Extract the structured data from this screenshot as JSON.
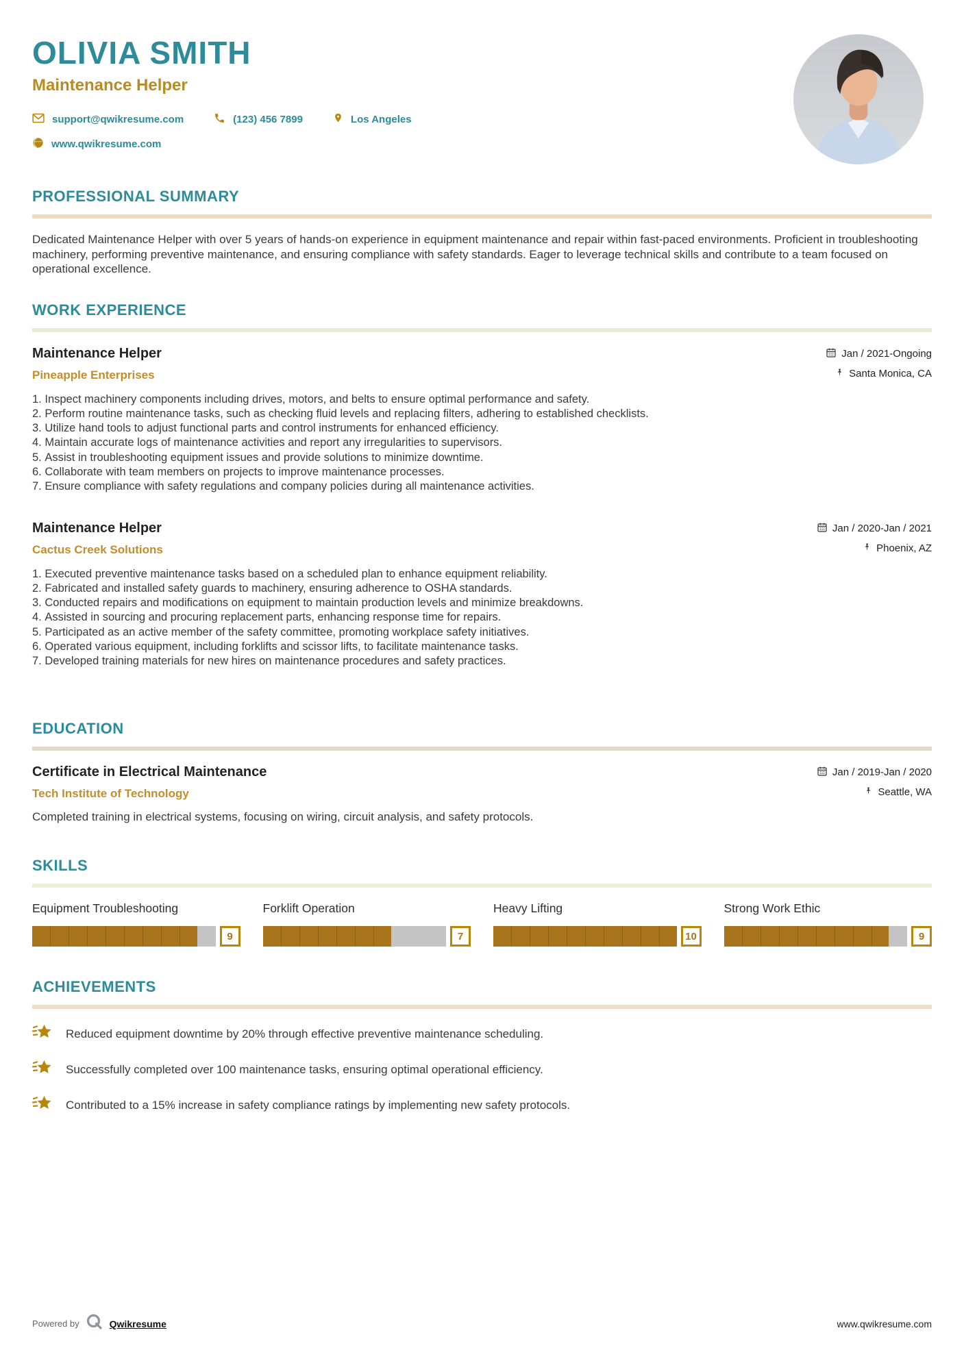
{
  "header": {
    "name": "OLIVIA SMITH",
    "title": "Maintenance Helper",
    "email": "support@qwikresume.com",
    "phone": "(123) 456 7899",
    "location": "Los Angeles",
    "website": "www.qwikresume.com"
  },
  "sections": {
    "summary": "PROFESSIONAL SUMMARY",
    "work": "WORK EXPERIENCE",
    "education": "EDUCATION",
    "skills": "SKILLS",
    "achievements": "ACHIEVEMENTS"
  },
  "summary": {
    "text": "Dedicated Maintenance Helper with over 5 years of hands-on experience in equipment maintenance and repair within fast-paced environments. Proficient in troubleshooting machinery, performing preventive maintenance, and ensuring compliance with safety standards. Eager to leverage technical skills and contribute to a team focused on operational excellence."
  },
  "work": {
    "jobs": [
      {
        "title": "Maintenance Helper",
        "company": "Pineapple Enterprises",
        "dates": "Jan / 2021-Ongoing",
        "location": "Santa Monica, CA",
        "bullets": [
          "Inspect machinery components including drives, motors, and belts to ensure optimal performance and safety.",
          "Perform routine maintenance tasks, such as checking fluid levels and replacing filters, adhering to established checklists.",
          "Utilize hand tools to adjust functional parts and control instruments for enhanced efficiency.",
          "Maintain accurate logs of maintenance activities and report any irregularities to supervisors.",
          "Assist in troubleshooting equipment issues and provide solutions to minimize downtime.",
          "Collaborate with team members on projects to improve maintenance processes.",
          "Ensure compliance with safety regulations and company policies during all maintenance activities."
        ]
      },
      {
        "title": "Maintenance Helper",
        "company": "Cactus Creek Solutions",
        "dates": "Jan / 2020-Jan / 2021",
        "location": "Phoenix, AZ",
        "bullets": [
          "Executed preventive maintenance tasks based on a scheduled plan to enhance equipment reliability.",
          "Fabricated and installed safety guards to machinery, ensuring adherence to OSHA standards.",
          "Conducted repairs and modifications on equipment to maintain production levels and minimize breakdowns.",
          "Assisted in sourcing and procuring replacement parts, enhancing response time for repairs.",
          "Participated as an active member of the safety committee, promoting workplace safety initiatives.",
          "Operated various equipment, including forklifts and scissor lifts, to facilitate maintenance tasks.",
          "Developed training materials for new hires on maintenance procedures and safety practices."
        ]
      }
    ]
  },
  "education": {
    "degree": "Certificate in Electrical Maintenance",
    "school": "Tech Institute of Technology",
    "dates": "Jan / 2019-Jan / 2020",
    "location": "Seattle, WA",
    "description": "Completed training in electrical systems, focusing on wiring, circuit analysis, and safety protocols."
  },
  "skills": {
    "items": [
      {
        "name": "Equipment Troubleshooting",
        "score": 9
      },
      {
        "name": "Forklift Operation",
        "score": 7
      },
      {
        "name": "Heavy Lifting",
        "score": 10
      },
      {
        "name": "Strong Work Ethic",
        "score": 9
      }
    ]
  },
  "achievements": {
    "items": [
      "Reduced equipment downtime by 20% through effective preventive maintenance scheduling.",
      "Successfully completed over 100 maintenance tasks, ensuring optimal operational efficiency.",
      "Contributed to a 15% increase in safety compliance ratings by implementing new safety protocols."
    ]
  },
  "footer": {
    "powered_by": "Powered by",
    "brand": "Qwikresume",
    "website": "www.qwikresume.com"
  },
  "colors": {
    "accent_teal": "#2E8B99",
    "accent_gold": "#B8860B",
    "company_gold": "#C28E2B",
    "bar_gold": "#A9751C",
    "bar_gray": "#C4C4C4",
    "rule_tan": "#EFDCC5",
    "rule_olive": "#EBEBD3"
  }
}
